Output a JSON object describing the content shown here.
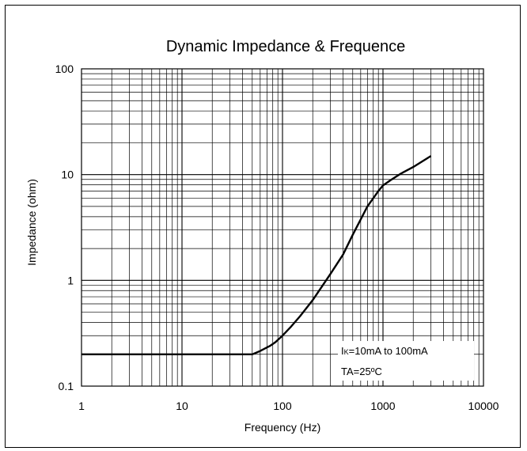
{
  "chart_data": {
    "type": "line",
    "title": "Dynamic Impedance & Frequence",
    "xlabel": "Frequency (Hz)",
    "ylabel": "Impedance (ohm)",
    "x_scale": "log",
    "y_scale": "log",
    "xlim": [
      1,
      10000
    ],
    "ylim": [
      0.1,
      100
    ],
    "x_ticks": [
      "1",
      "10",
      "100",
      "1000",
      "10000"
    ],
    "y_ticks": [
      "0.1",
      "1",
      "10",
      "100"
    ],
    "grid": true,
    "series": [
      {
        "x": [
          1,
          10,
          50,
          60,
          75,
          85,
          100,
          120,
          150,
          200,
          300,
          400,
          500,
          700,
          900,
          1000,
          1200,
          1500,
          2000,
          3000
        ],
        "y": [
          0.2,
          0.2,
          0.2,
          0.215,
          0.24,
          0.26,
          0.3,
          0.36,
          0.46,
          0.65,
          1.15,
          1.75,
          2.7,
          5.0,
          7.0,
          7.9,
          8.9,
          10.2,
          11.8,
          15.0
        ]
      }
    ],
    "annotation": {
      "line1_prefix": "I",
      "line1_sub": "K",
      "line1_rest": "=10mA  to 100mA",
      "line2": "TA=25ºC"
    },
    "colors": {
      "line": "#000000",
      "grid": "#000000"
    }
  }
}
